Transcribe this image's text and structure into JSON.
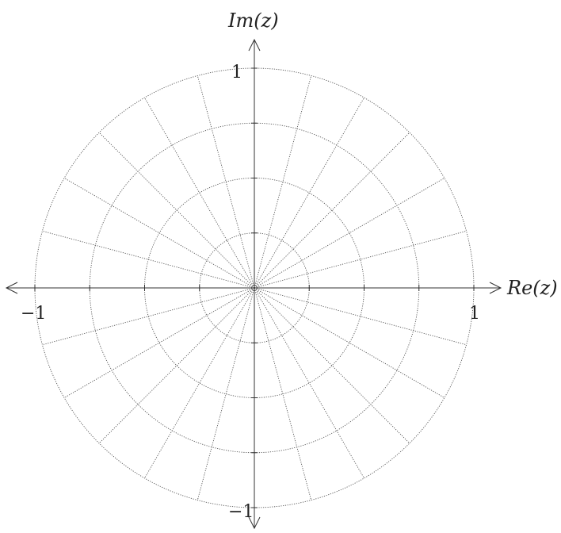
{
  "diagram": {
    "axes": {
      "x_label": "Re(z)",
      "y_label": "Im(z)",
      "x_range": [
        -1,
        1
      ],
      "y_range": [
        -1,
        1
      ]
    },
    "tick_labels": {
      "x_neg": "−1",
      "x_pos": "1",
      "y_pos": "1",
      "y_neg": "−1"
    },
    "ticks_per_unit": 4,
    "circle_radii": [
      0.25,
      0.5,
      0.75,
      1
    ],
    "radial_line_count": 24,
    "radial_spacing_deg": 15,
    "grid_style": "dotted"
  }
}
